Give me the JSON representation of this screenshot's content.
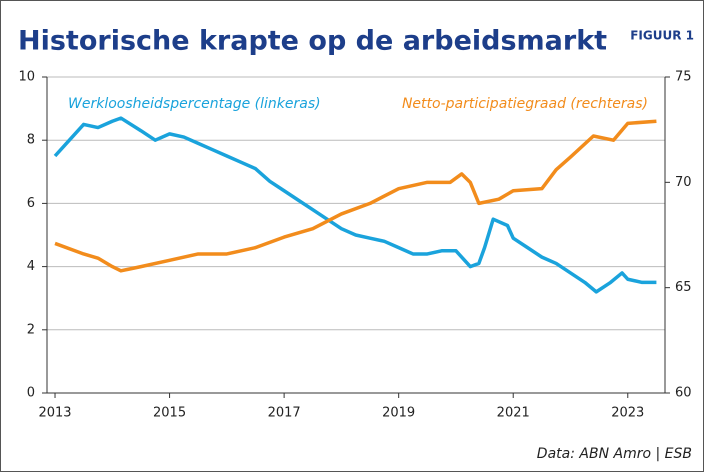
{
  "chart_data": {
    "type": "line",
    "title": "Historische krapte op de arbeidsmarkt",
    "figure_label": "FIGUUR 1",
    "source": "Data: ABN Amro | ESB",
    "xlim": [
      2012.86,
      2023.65
    ],
    "xticks": [
      2013,
      2015,
      2017,
      2019,
      2021,
      2023
    ],
    "ylim": [
      0,
      10
    ],
    "yticks": [
      0,
      2,
      4,
      6,
      8,
      10
    ],
    "y2lim": [
      60,
      75
    ],
    "y2ticks": [
      60,
      65,
      70,
      75
    ],
    "grid": true,
    "series": [
      {
        "name": "Werkloosheidspercentage (linkeras)",
        "color": "#1aa3dc",
        "axis": "y",
        "x": [
          2013,
          2013.25,
          2013.5,
          2013.75,
          2014,
          2014.15,
          2014.5,
          2014.75,
          2015,
          2015.25,
          2015.5,
          2015.75,
          2016,
          2016.25,
          2016.5,
          2016.75,
          2017,
          2017.25,
          2017.5,
          2017.75,
          2018,
          2018.25,
          2018.5,
          2018.75,
          2019,
          2019.25,
          2019.5,
          2019.75,
          2020,
          2020.25,
          2020.4,
          2020.5,
          2020.65,
          2020.9,
          2021,
          2021.25,
          2021.5,
          2021.75,
          2022,
          2022.25,
          2022.45,
          2022.7,
          2022.9,
          2023,
          2023.25,
          2023.5
        ],
        "values": [
          7.5,
          8.0,
          8.5,
          8.4,
          8.6,
          8.7,
          8.3,
          8.0,
          8.2,
          8.1,
          7.9,
          7.7,
          7.5,
          7.3,
          7.1,
          6.7,
          6.4,
          6.1,
          5.8,
          5.5,
          5.2,
          5.0,
          4.9,
          4.8,
          4.6,
          4.4,
          4.4,
          4.5,
          4.5,
          4.0,
          4.1,
          4.6,
          5.5,
          5.3,
          4.9,
          4.6,
          4.3,
          4.1,
          3.8,
          3.5,
          3.2,
          3.5,
          3.8,
          3.6,
          3.5,
          3.5
        ]
      },
      {
        "name": "Netto-participatiegraad (rechteras)",
        "color": "#f28c1c",
        "axis": "y2",
        "x": [
          2013,
          2013.5,
          2013.75,
          2014,
          2014.15,
          2014.5,
          2015,
          2015.5,
          2016,
          2016.5,
          2017,
          2017.5,
          2018,
          2018.5,
          2019,
          2019.5,
          2019.9,
          2020.1,
          2020.25,
          2020.4,
          2020.75,
          2021,
          2021.5,
          2021.75,
          2022,
          2022.4,
          2022.75,
          2023,
          2023.5
        ],
        "values": [
          67.1,
          66.6,
          66.4,
          66.0,
          65.8,
          66.0,
          66.3,
          66.6,
          66.6,
          66.9,
          67.4,
          67.8,
          68.5,
          69.0,
          69.7,
          70.0,
          70.0,
          70.4,
          70.0,
          69.0,
          69.2,
          69.6,
          69.7,
          70.6,
          71.2,
          72.2,
          72.0,
          72.8,
          72.9
        ]
      }
    ]
  }
}
